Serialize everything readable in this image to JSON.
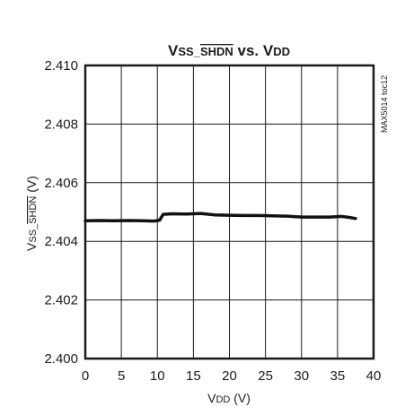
{
  "chart_data": {
    "type": "line",
    "title": {
      "parts": [
        {
          "text": "V",
          "sub": false,
          "overline": false
        },
        {
          "text": "SS_",
          "sub": true,
          "overline": false
        },
        {
          "text": "SHDN",
          "sub": true,
          "overline": true
        },
        {
          "text": " vs. V",
          "sub": false,
          "overline": false
        },
        {
          "text": "DD",
          "sub": true,
          "overline": false
        }
      ]
    },
    "xlabel": {
      "parts": [
        {
          "text": "V",
          "sub": false,
          "overline": false
        },
        {
          "text": "DD",
          "sub": true,
          "overline": false
        },
        {
          "text": " (V)",
          "sub": false,
          "overline": false
        }
      ]
    },
    "ylabel": {
      "parts": [
        {
          "text": "V",
          "sub": false,
          "overline": false
        },
        {
          "text": "SS_",
          "sub": true,
          "overline": false
        },
        {
          "text": "SHDN",
          "sub": true,
          "overline": true
        },
        {
          "text": " (V)",
          "sub": false,
          "overline": false
        }
      ]
    },
    "side_note": "MAX5014 toc12",
    "xlim": [
      0,
      40
    ],
    "ylim": [
      2.4,
      2.41
    ],
    "x_ticks": [
      0,
      5,
      10,
      15,
      20,
      25,
      30,
      35,
      40
    ],
    "x_tick_labels": [
      "0",
      "5",
      "10",
      "15",
      "20",
      "25",
      "30",
      "35",
      "40"
    ],
    "y_ticks": [
      2.4,
      2.402,
      2.404,
      2.406,
      2.408,
      2.41
    ],
    "y_tick_labels": [
      "2.400",
      "2.402",
      "2.404",
      "2.406",
      "2.408",
      "2.410"
    ],
    "grid": true,
    "series": [
      {
        "x": [
          0,
          2,
          4,
          6,
          8,
          9.5,
          10.3,
          10.8,
          12,
          14,
          16,
          18,
          20,
          22,
          24,
          26,
          28,
          30,
          32,
          34,
          35.5,
          36.5,
          37.5
        ],
        "y": [
          2.4047,
          2.40471,
          2.4047,
          2.40471,
          2.4047,
          2.40469,
          2.40472,
          2.40492,
          2.40494,
          2.40493,
          2.40495,
          2.4049,
          2.40489,
          2.40488,
          2.40488,
          2.40487,
          2.40486,
          2.40483,
          2.40483,
          2.40483,
          2.40485,
          2.40482,
          2.40478
        ]
      }
    ]
  }
}
